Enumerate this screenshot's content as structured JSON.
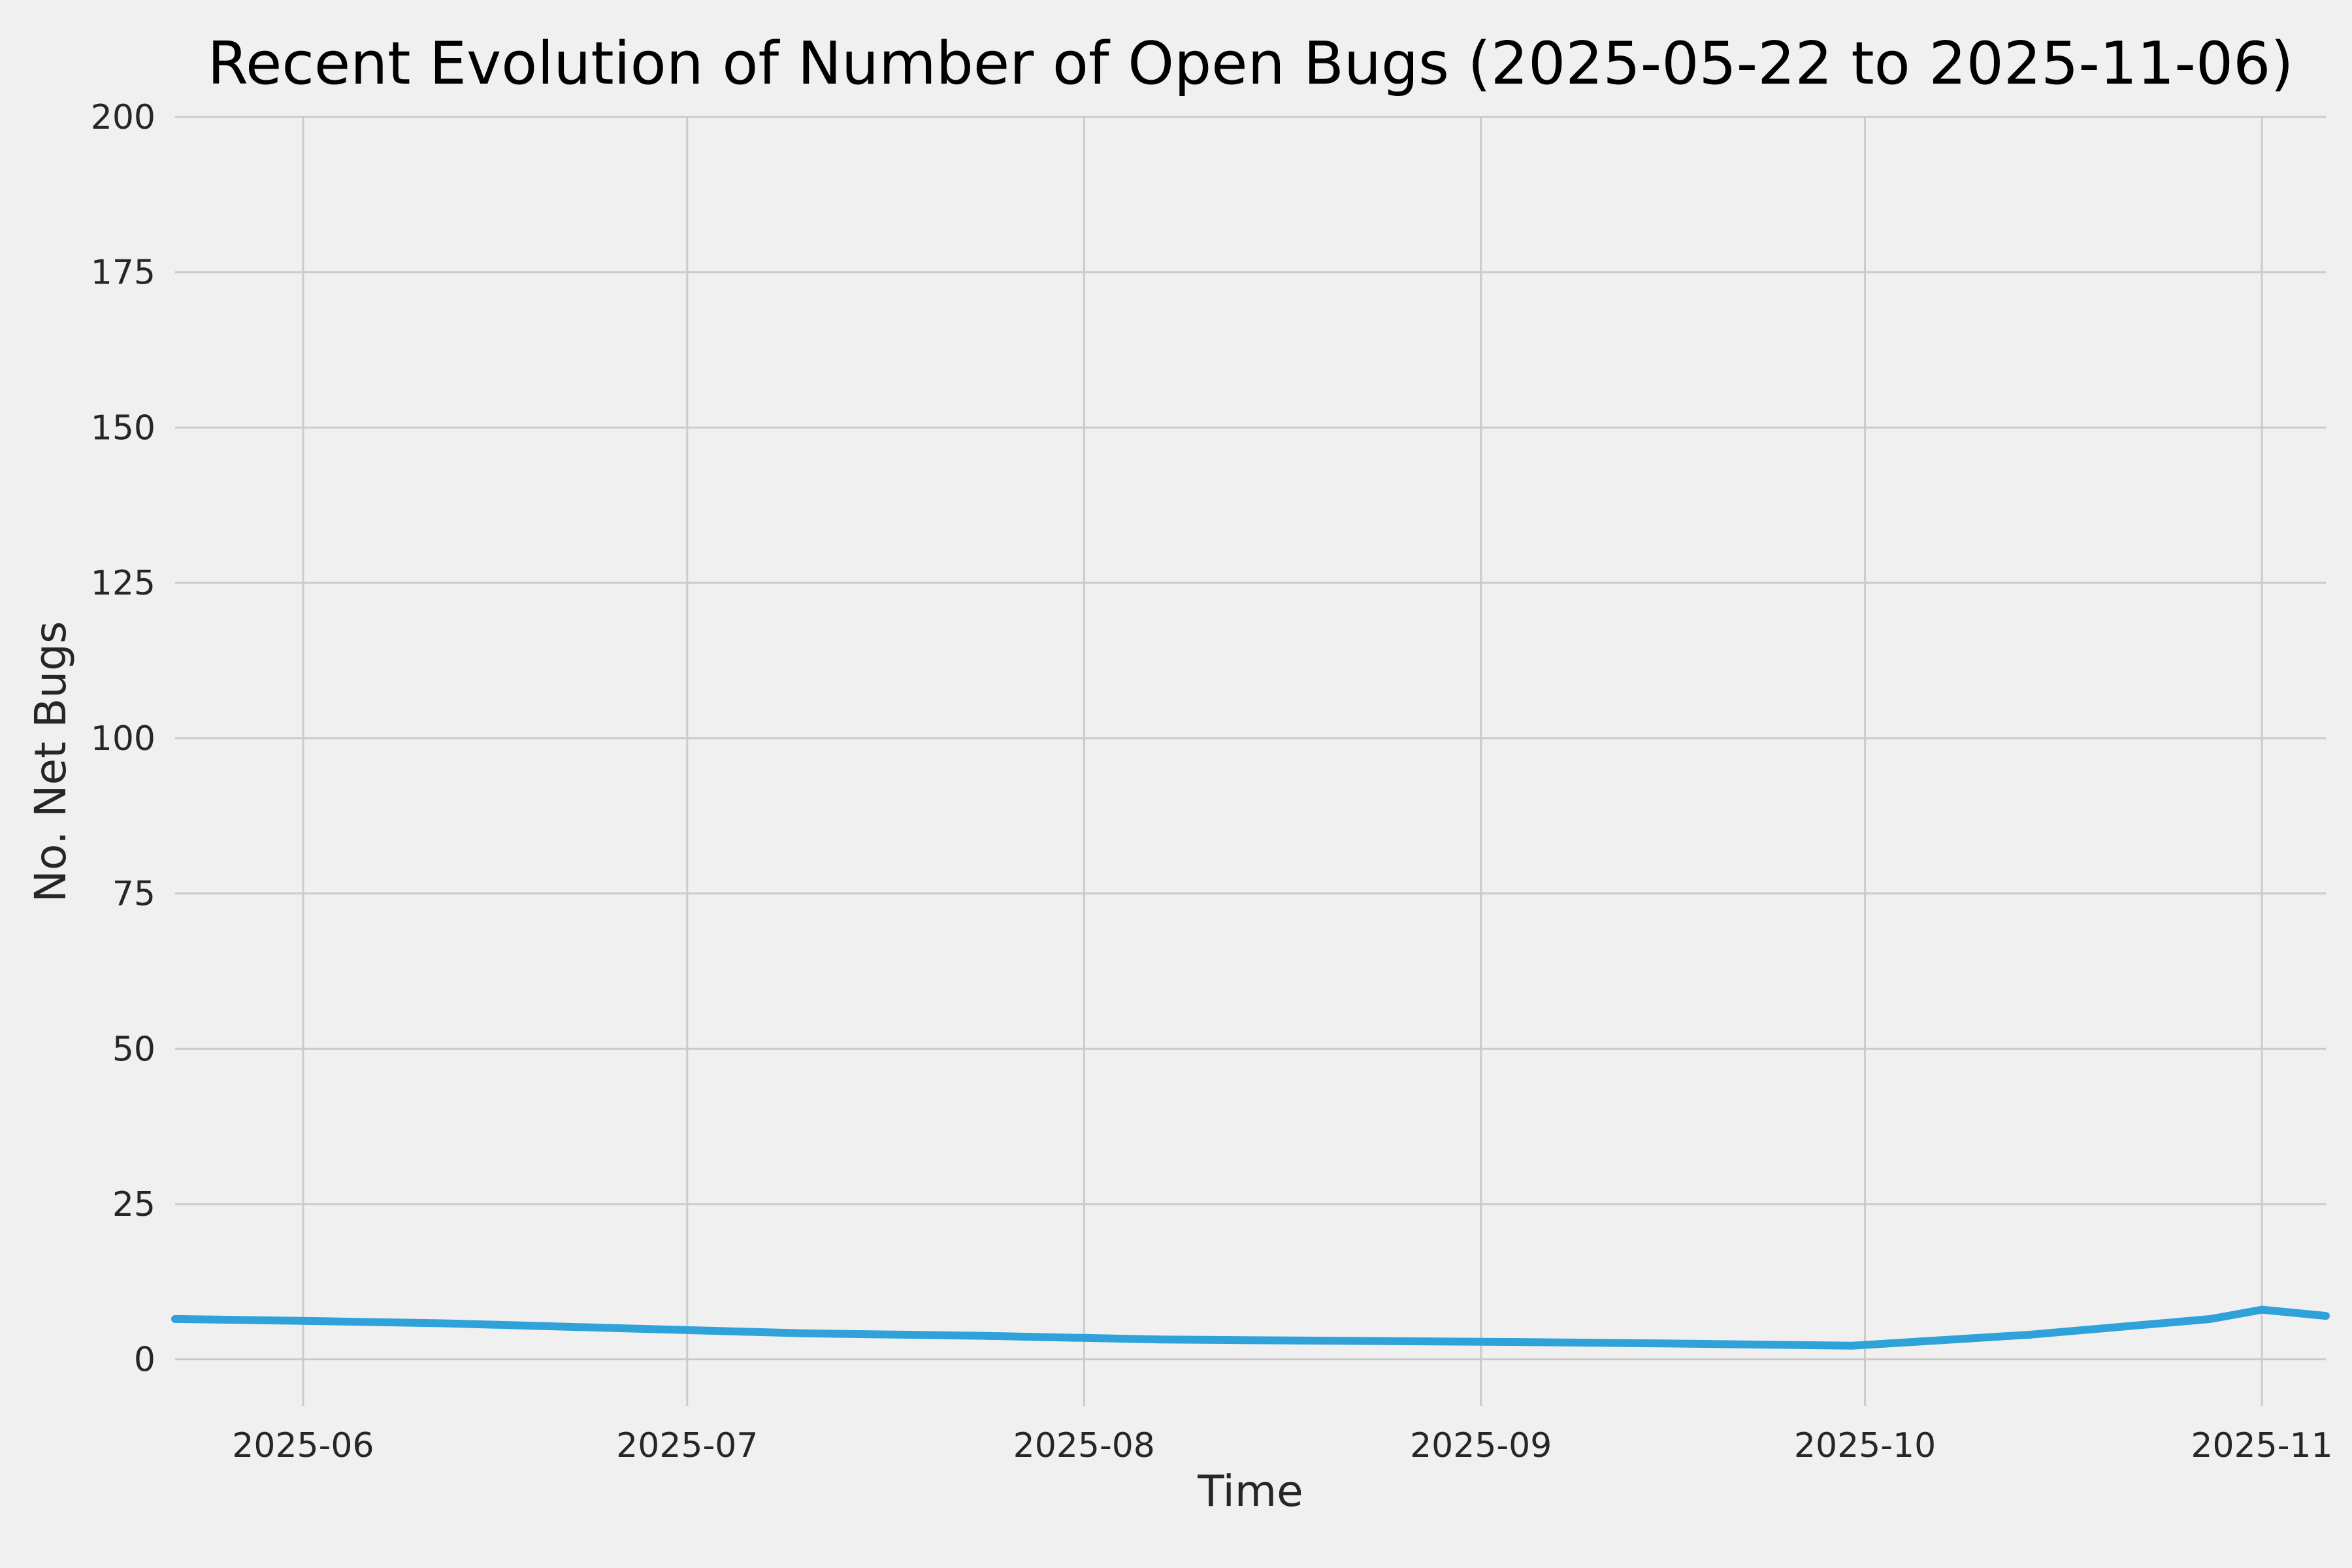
{
  "chart_data": {
    "type": "line",
    "title": "Recent Evolution of Number of Open Bugs (2025-05-22 to 2025-11-06)",
    "xlabel": "Time",
    "ylabel": "No. Net Bugs",
    "xlim": [
      "2025-05-22",
      "2025-11-06"
    ],
    "ylim": [
      -7.5,
      200
    ],
    "y_ticks": [
      0,
      25,
      50,
      75,
      100,
      125,
      150,
      175,
      200
    ],
    "x_ticks": [
      {
        "date": "2025-06-01",
        "label": "2025-06"
      },
      {
        "date": "2025-07-01",
        "label": "2025-07"
      },
      {
        "date": "2025-08-01",
        "label": "2025-08"
      },
      {
        "date": "2025-09-01",
        "label": "2025-09"
      },
      {
        "date": "2025-10-01",
        "label": "2025-10"
      },
      {
        "date": "2025-11-01",
        "label": "2025-11"
      }
    ],
    "grid": true,
    "legend": "none",
    "series": [
      {
        "name": "open-bugs",
        "color": "#30a2da",
        "points": [
          {
            "date": "2025-05-22",
            "value": 6.5
          },
          {
            "date": "2025-06-01",
            "value": 6.2
          },
          {
            "date": "2025-06-12",
            "value": 5.8
          },
          {
            "date": "2025-06-26",
            "value": 5.0
          },
          {
            "date": "2025-07-10",
            "value": 4.2
          },
          {
            "date": "2025-07-24",
            "value": 3.8
          },
          {
            "date": "2025-08-07",
            "value": 3.2
          },
          {
            "date": "2025-08-21",
            "value": 3.0
          },
          {
            "date": "2025-09-04",
            "value": 2.8
          },
          {
            "date": "2025-09-18",
            "value": 2.5
          },
          {
            "date": "2025-09-30",
            "value": 2.2
          },
          {
            "date": "2025-10-14",
            "value": 4.0
          },
          {
            "date": "2025-10-28",
            "value": 6.5
          },
          {
            "date": "2025-11-01",
            "value": 8.0
          },
          {
            "date": "2025-11-06",
            "value": 7.0
          }
        ]
      }
    ],
    "colors": {
      "background": "#f0f0f0",
      "grid": "#cbcbcb",
      "line": "#30a2da",
      "text": "#262626"
    }
  }
}
